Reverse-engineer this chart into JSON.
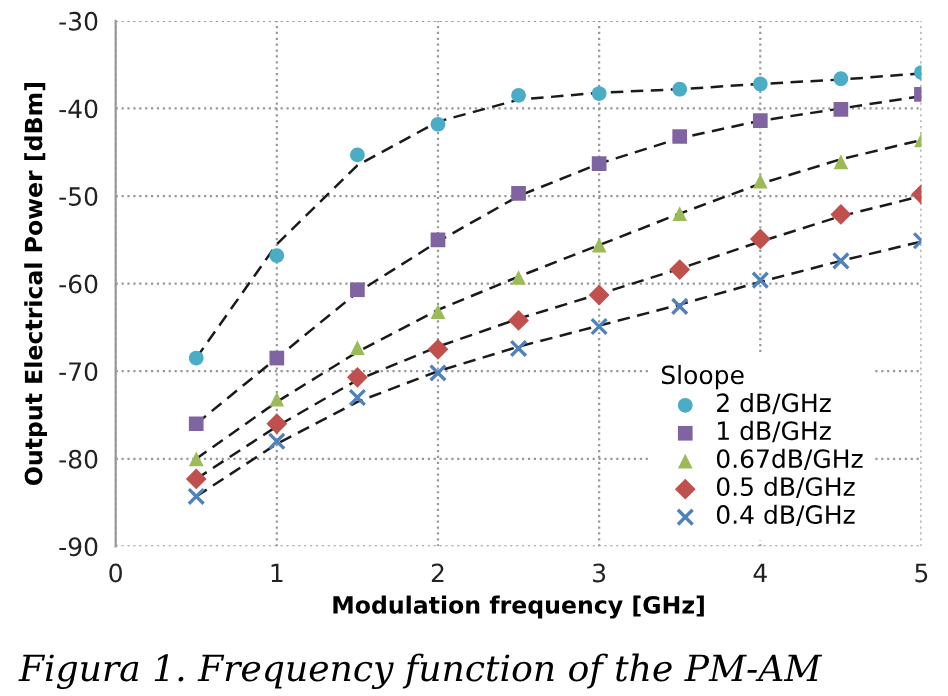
{
  "chart_data": {
    "type": "scatter",
    "xlabel": "Modulation frequency [GHz]",
    "ylabel": "Output Electrical Power [dBm]",
    "legend_title": "Sloope",
    "legend": "bottom right",
    "grid": true,
    "xlim": [
      0,
      5
    ],
    "xticks": [
      0,
      1,
      2,
      3,
      4,
      5
    ],
    "ylim": [
      -90,
      -30
    ],
    "yticks": [
      -90,
      -80,
      -70,
      -60,
      -50,
      -40,
      -30
    ],
    "annotations": [
      "Figura 1. Frequency function of the PM-AM"
    ],
    "x": [
      0.5,
      1,
      1.5,
      2,
      2.5,
      3,
      3.5,
      4,
      4.5,
      5
    ],
    "series": [
      {
        "type": "line",
        "color": "#1a1a1a",
        "line_style": "dashed",
        "marker": "none",
        "values": [
          -68.5,
          -55.5,
          -46.5,
          -41.5,
          -39,
          -38.2,
          -37.8,
          -37.2,
          -36.7,
          -36
        ]
      },
      {
        "type": "line",
        "color": "#1a1a1a",
        "line_style": "dashed",
        "marker": "none",
        "values": [
          -76,
          -68.5,
          -61,
          -55.2,
          -50,
          -46.3,
          -43.4,
          -41.4,
          -40,
          -38.6
        ]
      },
      {
        "type": "line",
        "color": "#1a1a1a",
        "line_style": "dashed",
        "marker": "none",
        "values": [
          -80,
          -73.5,
          -67.8,
          -63,
          -59.2,
          -55.6,
          -52,
          -48.6,
          -45.8,
          -43.6
        ]
      },
      {
        "type": "line",
        "color": "#1a1a1a",
        "line_style": "dashed",
        "marker": "none",
        "values": [
          -82.3,
          -76.3,
          -71,
          -67.2,
          -64,
          -61.2,
          -58.3,
          -55.2,
          -52.3,
          -50
        ]
      },
      {
        "type": "line",
        "color": "#1a1a1a",
        "line_style": "dashed",
        "marker": "none",
        "values": [
          -84.3,
          -78.3,
          -73.5,
          -70,
          -67.2,
          -64.8,
          -62.4,
          -59.8,
          -57.4,
          -55.2
        ]
      },
      {
        "name": "2 dB/GHz",
        "color": "#4bacc6",
        "marker": "circle",
        "values": [
          -68.5,
          -56.8,
          -45.3,
          -41.8,
          -38.5,
          -38.3,
          -37.8,
          -37.2,
          -36.6,
          -35.9
        ]
      },
      {
        "name": "1 dB/GHz",
        "color": "#8064a2",
        "marker": "square",
        "values": [
          -76,
          -68.5,
          -60.7,
          -55,
          -49.7,
          -46.3,
          -43.2,
          -41.4,
          -40.1,
          -38.4
        ]
      },
      {
        "name": "0.67dB/GHz",
        "color": "#9bbb59",
        "marker": "triangle",
        "values": [
          -80,
          -73.2,
          -67.3,
          -63.2,
          -59.3,
          -55.6,
          -52,
          -48.3,
          -46.1,
          -43.6
        ]
      },
      {
        "name": "0.5 dB/GHz",
        "color": "#c0504d",
        "marker": "diamond",
        "values": [
          -82.3,
          -76,
          -70.7,
          -67.5,
          -64.2,
          -61.3,
          -58.4,
          -54.9,
          -52.1,
          -49.8
        ]
      },
      {
        "name": "0.4 dB/GHz",
        "color": "#4f81bd",
        "marker": "cross",
        "values": [
          -84.3,
          -78,
          -73,
          -70.2,
          -67.4,
          -64.9,
          -62.6,
          -59.6,
          -57.4,
          -55.1
        ]
      }
    ]
  }
}
